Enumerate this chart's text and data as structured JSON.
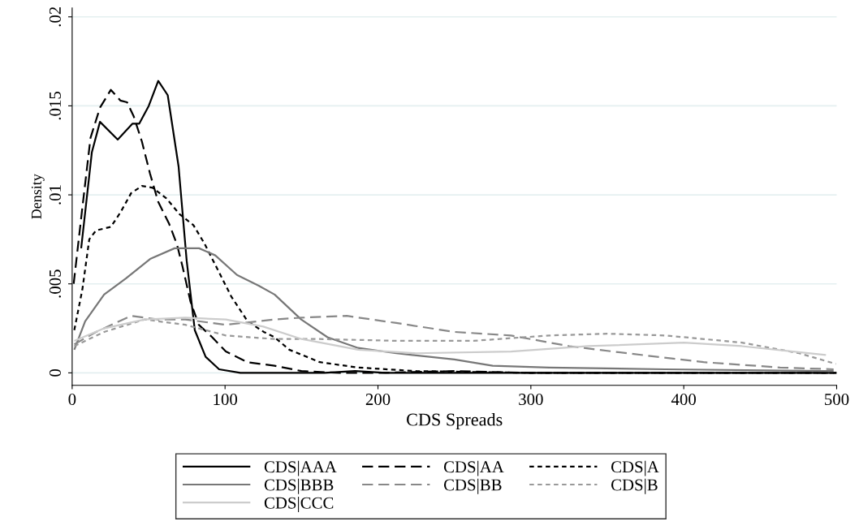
{
  "chart_data": {
    "type": "line",
    "xlabel": "CDS Spreads",
    "ylabel": "Density",
    "xlim": [
      0,
      500
    ],
    "xticks": [
      0,
      100,
      200,
      300,
      400,
      500
    ],
    "ylim": [
      -0.0007,
      0.0205
    ],
    "yticks": [
      {
        "value": 0,
        "label": "0"
      },
      {
        "value": 0.005,
        "label": ".005"
      },
      {
        "value": 0.01,
        "label": ".01"
      },
      {
        "value": 0.015,
        "label": ".015"
      },
      {
        "value": 0.02,
        "label": ".02"
      }
    ],
    "grid": "y",
    "legend": "bottom",
    "marker": "none",
    "series": [
      {
        "name": "CDS|AAA",
        "color": "#000000",
        "line_style": "solid",
        "x": [
          5.9,
          12.9,
          18.2,
          29.8,
          39.5,
          43.9,
          50.1,
          56.3,
          62.5,
          69.6,
          74.9,
          80.2,
          87.3,
          96.1,
          110,
          140,
          165,
          185,
          205,
          250,
          300,
          350,
          400,
          450,
          500
        ],
        "values": [
          0.007,
          0.0124,
          0.0141,
          0.0131,
          0.014,
          0.014,
          0.015,
          0.0164,
          0.0156,
          0.0116,
          0.0063,
          0.0024,
          0.0009,
          0.0002,
          0,
          0,
          0,
          0.0001,
          0,
          0,
          0,
          0,
          0,
          0,
          0
        ]
      },
      {
        "name": "CDS|AA",
        "color": "#000000",
        "line_style": "dashed",
        "x": [
          1,
          6.7,
          12,
          18.2,
          25.3,
          31.5,
          35.9,
          40.3,
          45.6,
          50.9,
          56.3,
          63.3,
          68.6,
          72.1,
          77.4,
          82.8,
          91.6,
          100.5,
          114.7,
          132.4,
          150,
          175,
          200,
          250,
          300,
          400,
          500
        ],
        "values": [
          0.005,
          0.0093,
          0.0132,
          0.0149,
          0.0159,
          0.0153,
          0.0152,
          0.0144,
          0.013,
          0.0112,
          0.0096,
          0.0084,
          0.0072,
          0.006,
          0.004,
          0.0027,
          0.002,
          0.0012,
          0.0006,
          0.0004,
          0.0001,
          0,
          0,
          0.0001,
          0,
          0,
          0
        ]
      },
      {
        "name": "CDS|A",
        "color": "#000000",
        "line_style": "dotted",
        "x": [
          1.4,
          6.7,
          11.2,
          15.6,
          25.3,
          31.5,
          38.6,
          45.6,
          52.7,
          61.6,
          70.4,
          79.3,
          86.3,
          95.2,
          104,
          114.7,
          125.3,
          132.4,
          142,
          162,
          187,
          225,
          300,
          400,
          500
        ],
        "values": [
          0.0024,
          0.0047,
          0.0075,
          0.008,
          0.0082,
          0.009,
          0.0101,
          0.0105,
          0.0104,
          0.0098,
          0.0089,
          0.0083,
          0.0073,
          0.0058,
          0.0043,
          0.0029,
          0.0023,
          0.002,
          0.0013,
          0.0006,
          0.0003,
          0.0001,
          0,
          0,
          0
        ]
      },
      {
        "name": "CDS|BBB",
        "color": "#777777",
        "line_style": "solid",
        "x": [
          1.4,
          8.5,
          20.9,
          35.1,
          51,
          67,
          83,
          93.6,
          107.8,
          122,
          132.4,
          149.8,
          167,
          187,
          212,
          250,
          275,
          312,
          388,
          498
        ],
        "values": [
          0.0013,
          0.0029,
          0.0044,
          0.0053,
          0.0064,
          0.007,
          0.007,
          0.0066,
          0.0055,
          0.0049,
          0.0044,
          0.003,
          0.002,
          0.0014,
          0.0011,
          0.00075,
          0.0004,
          0.0003,
          0.0002,
          0.0001
        ]
      },
      {
        "name": "CDS|BB",
        "color": "#888888",
        "line_style": "dashed",
        "x": [
          1.4,
          15.6,
          38.6,
          56.3,
          74,
          100.5,
          132.4,
          150,
          179.6,
          212,
          250,
          287,
          325,
          363,
          413,
          463,
          498
        ],
        "values": [
          0.0016,
          0.0023,
          0.0032,
          0.003,
          0.003,
          0.0027,
          0.003,
          0.0031,
          0.0032,
          0.0028,
          0.0023,
          0.0021,
          0.0015,
          0.0011,
          0.0006,
          0.0003,
          0.0002
        ]
      },
      {
        "name": "CDS|B",
        "color": "#999999",
        "line_style": "dotted",
        "x": [
          1.4,
          20.9,
          47.4,
          74,
          100.5,
          132.4,
          162,
          212,
          262.5,
          312,
          350,
          388,
          438,
          475.6,
          499.5
        ],
        "values": [
          0.0015,
          0.0023,
          0.003,
          0.0027,
          0.0021,
          0.0019,
          0.0019,
          0.0018,
          0.0018,
          0.0021,
          0.0022,
          0.0021,
          0.0017,
          0.0011,
          0.0005
        ]
      },
      {
        "name": "CDS|CCC",
        "color": "#cccccc",
        "line_style": "solid",
        "x": [
          1.4,
          20.9,
          47.4,
          74,
          100.5,
          125,
          150,
          187,
          225,
          287,
          337.7,
          400,
          438,
          493
        ],
        "values": [
          0.0018,
          0.0025,
          0.003,
          0.0031,
          0.003,
          0.0026,
          0.0019,
          0.0013,
          0.0011,
          0.0012,
          0.0015,
          0.0017,
          0.0015,
          0.001
        ]
      }
    ]
  }
}
